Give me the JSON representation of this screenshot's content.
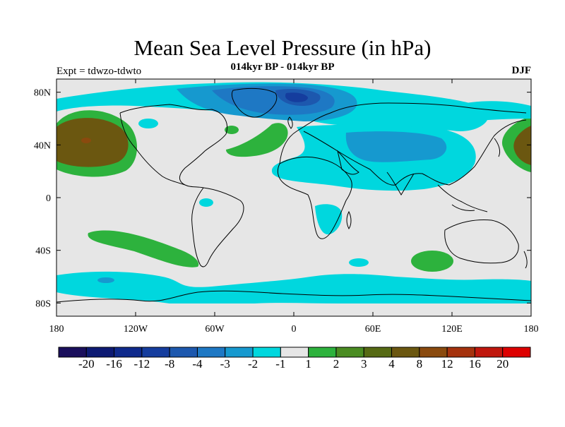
{
  "figure": {
    "title": "Mean Sea Level Pressure (in hPa)",
    "left_label": "Expt = tdwzo-tdwto",
    "center_label": "014kyr BP - 014kyr BP",
    "right_label": "DJF",
    "background_color": "#e6e6e6",
    "coastline_color": "#000000"
  },
  "axes": {
    "lat_ticks": [
      "80N",
      "40N",
      "0",
      "40S",
      "80S"
    ],
    "lat_values": [
      80,
      40,
      0,
      -40,
      -80
    ],
    "lon_ticks": [
      "180",
      "120W",
      "60W",
      "0",
      "60E",
      "120E",
      "180"
    ],
    "lon_values": [
      -180,
      -120,
      -60,
      0,
      60,
      120,
      180
    ],
    "lat_range": [
      -90,
      90
    ],
    "lon_range": [
      -180,
      180
    ]
  },
  "colorbar": {
    "colors": [
      "#1a0f5c",
      "#0d1a73",
      "#0f2a8c",
      "#153d9e",
      "#1d58ae",
      "#1e78c4",
      "#1699cf",
      "#00d7de",
      "#e6e6e6",
      "#2db23d",
      "#4a8c22",
      "#566a14",
      "#6b5710",
      "#8a4a0e",
      "#a5320d",
      "#c0170d",
      "#dd0000"
    ],
    "labels": [
      "-20",
      "-16",
      "-12",
      "-8",
      "-4",
      "-3",
      "-2",
      "-1",
      "1",
      "2",
      "3",
      "4",
      "8",
      "12",
      "16",
      "20"
    ]
  },
  "anomaly_regions": [
    {
      "name": "north-pacific-high",
      "level": "4",
      "color": "#6b5710",
      "lon": -160,
      "lat": 42,
      "dlon": 26,
      "dlat": 15
    },
    {
      "name": "north-pacific-high-core",
      "level": "8",
      "color": "#8a4a0e",
      "lon": -158,
      "lat": 43,
      "dlon": 4,
      "dlat": 3
    },
    {
      "name": "north-pacific-ring",
      "level": "2",
      "color": "#2db23d",
      "lon": -158,
      "lat": 40,
      "dlon": 30,
      "dlat": 22
    },
    {
      "name": "arctic-low",
      "level": "-3",
      "color": "#1e78c4",
      "lon": -10,
      "lat": 76,
      "dlon": 40,
      "dlat": 8
    },
    {
      "name": "eurasia-low",
      "level": "-2",
      "color": "#1699cf",
      "lon": 80,
      "lat": 42,
      "dlon": 30,
      "dlat": 10
    },
    {
      "name": "north-atlantic-high",
      "level": "2",
      "color": "#2db23d",
      "lon": -25,
      "lat": 45,
      "dlon": 18,
      "dlat": 10
    },
    {
      "name": "south-pacific-high",
      "level": "2",
      "color": "#2db23d",
      "lon": -120,
      "lat": -35,
      "dlon": 40,
      "dlat": 6
    },
    {
      "name": "south-indian-high",
      "level": "2",
      "color": "#2db23d",
      "lon": 105,
      "lat": -47,
      "dlon": 15,
      "dlat": 6
    },
    {
      "name": "southern-ocean-low",
      "level": "-1",
      "color": "#00d7de",
      "lon": 0,
      "lat": -68,
      "dlon": 150,
      "dlat": 6
    },
    {
      "name": "northwest-pacific-high",
      "level": "4",
      "color": "#6b5710",
      "lon": 180,
      "lat": 42,
      "dlon": 15,
      "dlat": 12
    }
  ]
}
